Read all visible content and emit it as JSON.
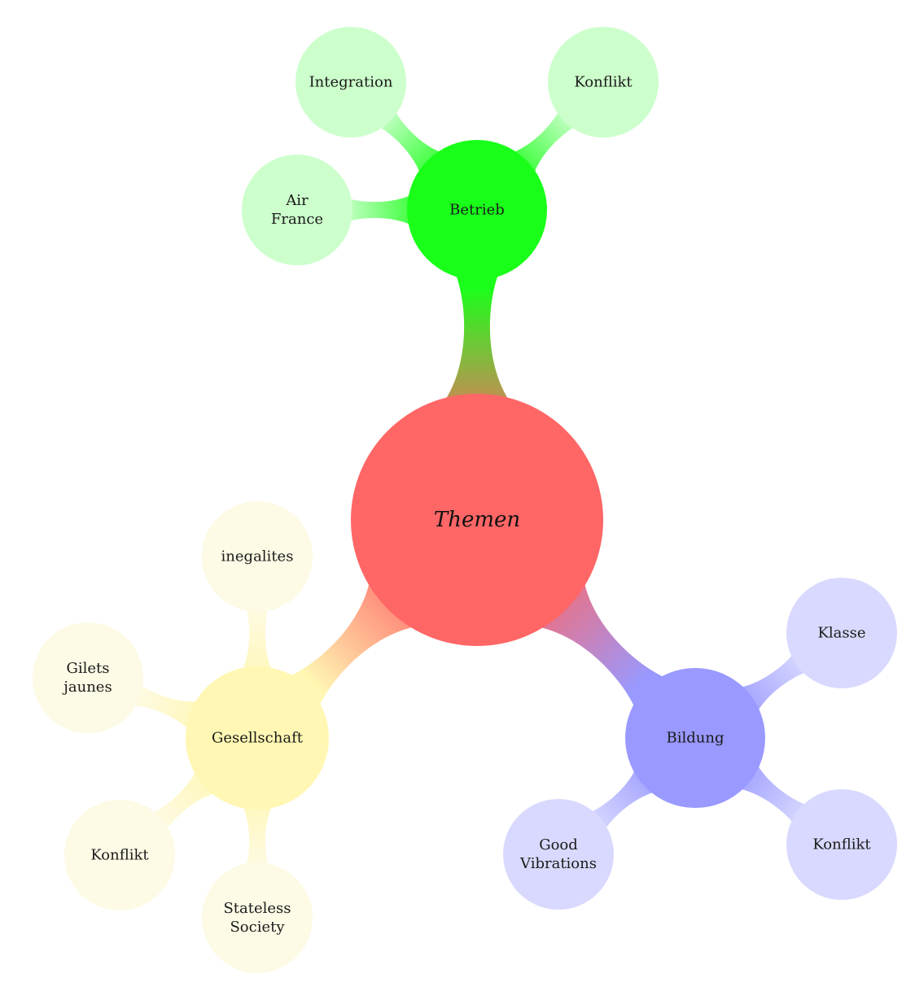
{
  "root": {
    "label": "Themen",
    "color": "#ff6666"
  },
  "branches": [
    {
      "id": "betrieb",
      "label": [
        "Betrieb"
      ],
      "color": "#1aff1a",
      "leaf_color": "#ccffcc",
      "children": [
        {
          "id": "air-france",
          "label": [
            "Air",
            "France"
          ]
        },
        {
          "id": "integration",
          "label": [
            "Integration"
          ]
        },
        {
          "id": "konflikt",
          "label": [
            "Konflikt"
          ]
        }
      ]
    },
    {
      "id": "gesellschaft",
      "label": [
        "Gesellschaft"
      ],
      "color": "#fff7b3",
      "leaf_color": "#fdfae5",
      "children": [
        {
          "id": "inegalites",
          "label": [
            "inegalites"
          ]
        },
        {
          "id": "gilets-jaunes",
          "label": [
            "Gilets",
            "jaunes"
          ]
        },
        {
          "id": "konflikt",
          "label": [
            "Konflikt"
          ]
        },
        {
          "id": "stateless-society",
          "label": [
            "Stateless",
            "Society"
          ]
        }
      ]
    },
    {
      "id": "bildung",
      "label": [
        "Bildung"
      ],
      "color": "#9999ff",
      "leaf_color": "#d9d9ff",
      "children": [
        {
          "id": "klasse",
          "label": [
            "Klasse"
          ]
        },
        {
          "id": "konflikt",
          "label": [
            "Konflikt"
          ]
        },
        {
          "id": "good-vibrations",
          "label": [
            "Good",
            "Vibrations"
          ]
        }
      ]
    }
  ]
}
